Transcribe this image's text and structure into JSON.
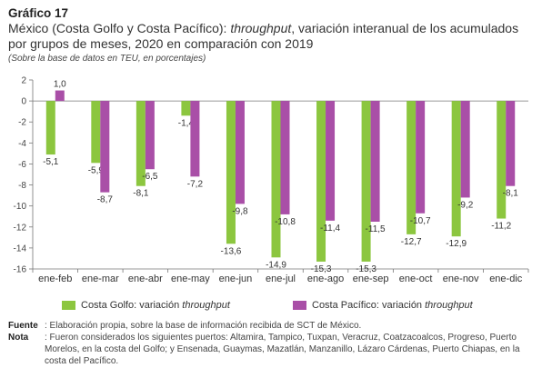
{
  "figure": {
    "label": "Gráfico 17",
    "title_prefix": "México (Costa Golfo y Costa Pacífico): ",
    "title_italic": "throughput",
    "title_suffix": ", variación interanual de los acumulados por grupos de meses, 2020 en comparación con 2019",
    "subtitle": "(Sobre la base de datos en TEU, en porcentajes)"
  },
  "legend": {
    "gulf_prefix": "Costa Golfo: variación ",
    "gulf_italic": "throughput",
    "pacific_prefix": "Costa Pacífico: variación ",
    "pacific_italic": "throughput"
  },
  "notes": {
    "source_label": "Fuente",
    "source_text": ": Elaboración propia, sobre la base de información recibida de SCT de México.",
    "note_label": "Nota",
    "note_text": ": Fueron considerados los siguientes puertos: Altamira, Tampico, Tuxpan, Veracruz, Coatzacoalcos, Progreso, Puerto Morelos, en la costa del Golfo; y Ensenada, Guaymas, Mazatlán, Manzanillo, Lázaro Cárdenas, Puerto Chiapas, en la costa del Pacífico."
  },
  "chart_data": {
    "type": "bar",
    "categories": [
      "ene-feb",
      "ene-mar",
      "ene-abr",
      "ene-may",
      "ene-jun",
      "ene-jul",
      "ene-ago",
      "ene-sep",
      "ene-oct",
      "ene-nov",
      "ene-dic"
    ],
    "series": [
      {
        "name": "Costa Golfo: variación throughput",
        "color": "#8cc63f",
        "values": [
          -5.1,
          -5.9,
          -8.1,
          -1.4,
          -13.6,
          -14.9,
          -15.3,
          -15.3,
          -12.7,
          -12.9,
          -11.2
        ],
        "labels": [
          "-5,1",
          "-5,9",
          "-8,1",
          "-1,4",
          "-13,6",
          "-14,9",
          "-15,3",
          "-15,3",
          "-12,7",
          "-12,9",
          "-11,2"
        ]
      },
      {
        "name": "Costa Pacífico: variación throughput",
        "color": "#a94fa7",
        "values": [
          1.0,
          -8.7,
          -6.5,
          -7.2,
          -9.8,
          -10.8,
          -11.4,
          -11.5,
          -10.7,
          -9.2,
          -8.1
        ],
        "labels": [
          "1,0",
          "-8,7",
          "-6,5",
          "-7,2",
          "-9,8",
          "-10,8",
          "-11,4",
          "-11,5",
          "-10,7",
          "-9,2",
          "-8,1"
        ]
      }
    ],
    "yticks": [
      2,
      0,
      -2,
      -4,
      -6,
      -8,
      -10,
      -12,
      -14,
      -16
    ],
    "ytick_labels": [
      "2",
      "0",
      "-2",
      "-4",
      "-6",
      "-8",
      "-10",
      "-12",
      "-14",
      "-16"
    ],
    "ylim": [
      -16,
      2
    ],
    "grid": false,
    "legend_position": "bottom"
  }
}
